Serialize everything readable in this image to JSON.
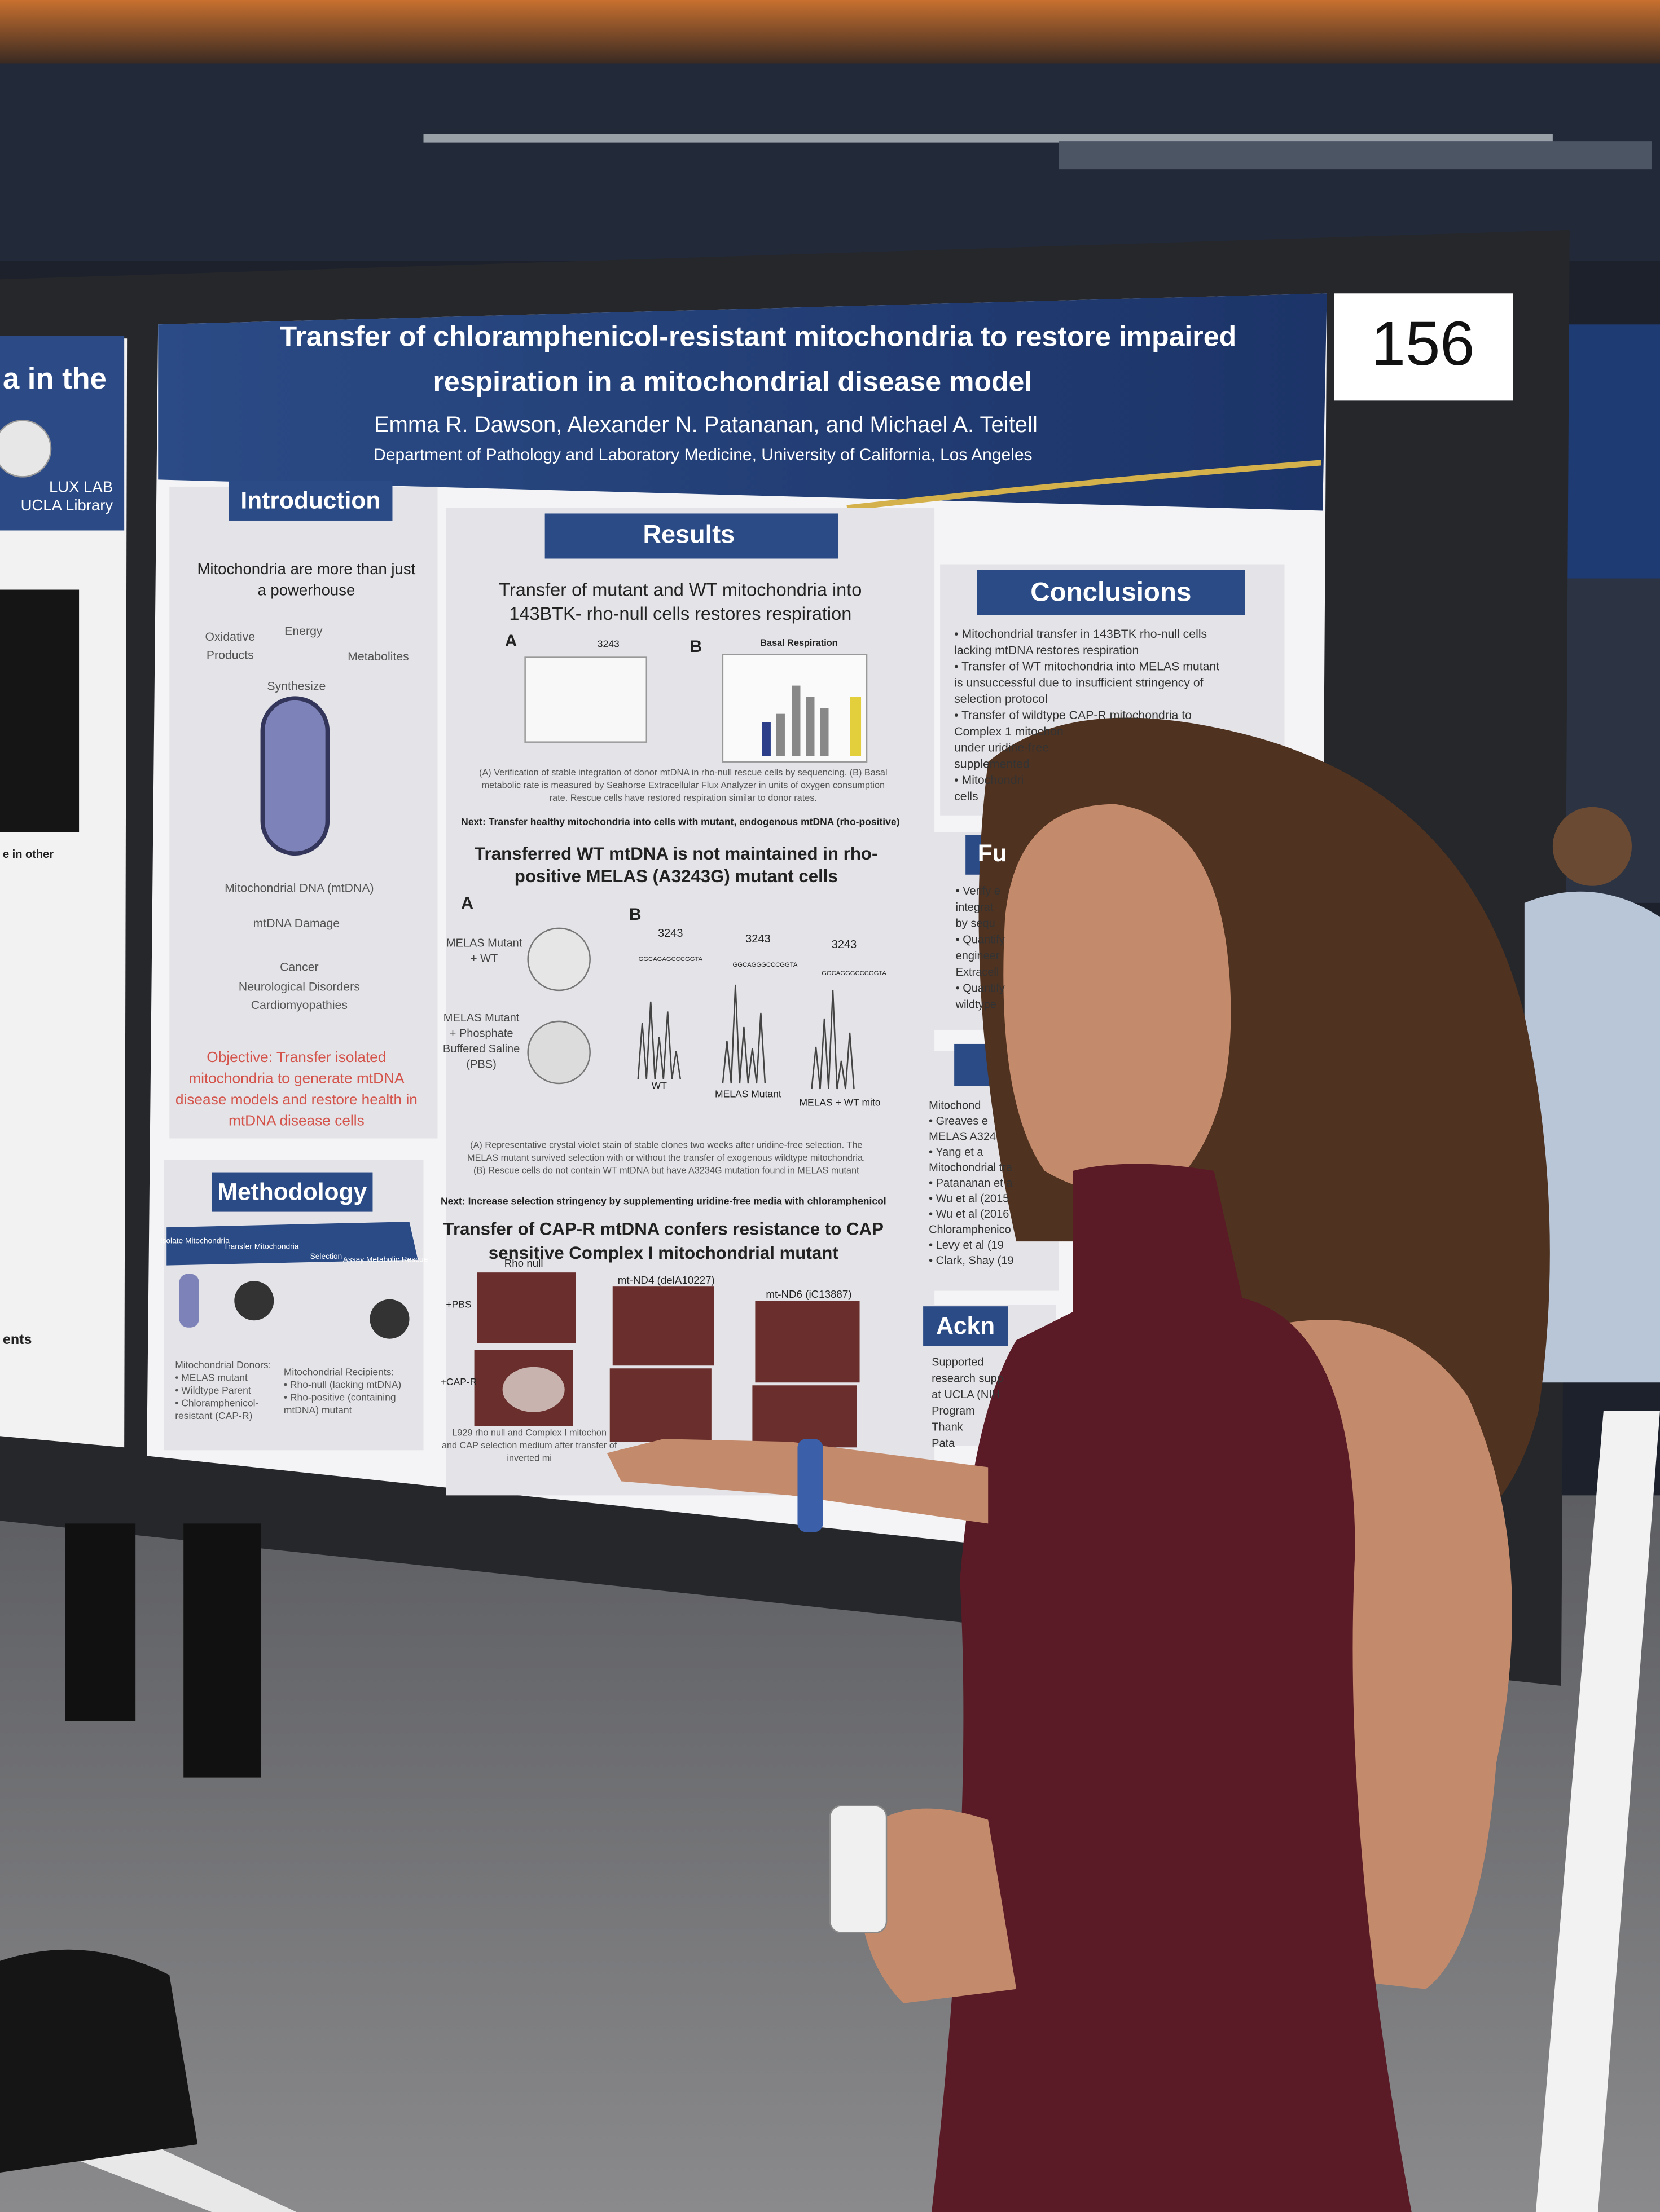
{
  "poster_number": "156",
  "poster": {
    "title": [
      "Transfer of chloramphenicol-resistant mitochondria to restore impaired",
      "respiration in a mitochondrial disease model"
    ],
    "authors": "Emma R. Dawson, Alexander N. Patananan, and Michael A. Teitell",
    "affiliation": "Department of Pathology and Laboratory Medicine, University of California, Los Angeles",
    "introduction": {
      "heading": "Introduction",
      "subtitle": [
        "Mitochondria are more than just",
        "a powerhouse"
      ],
      "diagram": [
        "Oxidative",
        "Products",
        "Energy",
        "Metabolites",
        "Synthesize",
        "Mitochondrial DNA (mtDNA)",
        "mtDNA Damage",
        "Cancer",
        "Neurological Disorders",
        "Cardiomyopathies"
      ],
      "objective": [
        "Objective: Transfer isolated",
        "mitochondria to generate mtDNA",
        "disease models and restore health in",
        "mtDNA disease cells"
      ]
    },
    "methodology": {
      "heading": "Methodology",
      "steps": [
        "Isolate Mitochondria",
        "Transfer Mitochondria",
        "Selection",
        "Assay Metabolic Rescue"
      ],
      "donors": [
        "Mitochondrial Donors:",
        "• MELAS mutant",
        "• Wildtype Parent",
        "• Chloramphenicol-",
        "resistant (CAP-R)"
      ],
      "recipients": [
        "Mitochondrial Recipients:",
        "• Rho-null (lacking mtDNA)",
        "• Rho-positive (containing",
        "mtDNA) mutant"
      ]
    },
    "results": {
      "heading": "Results",
      "part1": {
        "title": [
          "Transfer of mutant and WT mitochondria into",
          "143BTK- rho-null cells restores respiration"
        ],
        "panel_a": "A",
        "panel_b": "B",
        "locus": "3243",
        "chart_title": "Basal Respiration",
        "caption": [
          "(A) Verification of stable integration of donor mtDNA in rho-null rescue cells by sequencing. (B) Basal",
          "metabolic rate is measured by Seahorse Extracellular Flux Analyzer in units of oxygen consumption",
          "rate. Rescue cells have restored respiration similar to donor rates."
        ],
        "next": "Next: Transfer healthy mitochondria into cells with mutant, endogenous mtDNA (rho-positive)"
      },
      "part2": {
        "title": [
          "Transferred WT mtDNA is not maintained in rho-",
          "positive MELAS (A3243G) mutant cells"
        ],
        "panel_a": "A",
        "panel_b": "B",
        "row_labels": [
          "MELAS Mutant",
          "+ WT",
          "MELAS Mutant",
          "+ Phosphate",
          "Buffered Saline",
          "(PBS)"
        ],
        "loci": [
          "3243",
          "3243",
          "3243"
        ],
        "sequences": [
          "GGCAGAGCCCGGTA",
          "GGCAGGGCCCGGTA",
          "GGCAGGGCCCGGTA"
        ],
        "traces": [
          "WT",
          "MELAS Mutant",
          "MELAS + WT mito"
        ],
        "caption": [
          "(A) Representative crystal violet stain of stable clones two weeks after uridine-free selection. The",
          "MELAS mutant survived selection with or without the transfer of exogenous wildtype mitochondria.",
          "(B) Rescue cells do not contain WT mtDNA but have A3234G mutation found in MELAS mutant"
        ],
        "next": "Next: Increase selection stringency by supplementing uridine-free media with chloramphenicol"
      },
      "part3": {
        "title": [
          "Transfer of CAP-R mtDNA confers resistance to CAP",
          "sensitive Complex I mitochondrial mutant"
        ],
        "columns": [
          "Rho null",
          "mt-ND4 (delA10227)",
          "mt-ND6 (iC13887)"
        ],
        "rows": [
          "+PBS",
          "+CAP-R"
        ],
        "caption": [
          "L929 rho null and Complex I mitochon",
          "and CAP selection medium after transfer of",
          "inverted mi"
        ]
      }
    },
    "conclusions": {
      "heading": "Conclusions",
      "items": [
        "• Mitochondrial transfer in 143BTK rho-null cells",
        "lacking mtDNA restores respiration",
        "• Transfer of WT mitochondria into MELAS mutant",
        "is unsuccessful due to insufficient stringency of",
        "selection protocol",
        "• Transfer of wildtype CAP-R mitochondria to",
        "Complex 1 mitochon",
        "under uridine-free",
        "supplemented",
        "• Mitochondri",
        "cells"
      ]
    },
    "future": {
      "heading": "Fu",
      "items": [
        "• Verify e",
        "integrat",
        "by sequ",
        "• Quantify",
        "engineer",
        "Extracell",
        "• Quantify",
        "wildtype"
      ]
    },
    "references": {
      "items": [
        "Mitochond",
        "• Greaves e",
        "MELAS A324",
        "• Yang et a",
        "Mitochondrial tra",
        "• Patananan et a",
        "• Wu et al (2015",
        "• Wu et al (2016",
        "Chloramphenico",
        "• Levy et al (19",
        "• Clark, Shay (19"
      ]
    },
    "acknowledgements": {
      "heading": "Ackn",
      "items": [
        "Supported",
        "research supp",
        "at UCLA (NIH",
        "Program",
        "Thank",
        "Pata"
      ]
    }
  },
  "neighbor_poster": {
    "title_fragment": "a in the",
    "logo": [
      "LUX LAB",
      "UCLA Library"
    ],
    "fragments": [
      "e in other",
      "ents"
    ]
  }
}
